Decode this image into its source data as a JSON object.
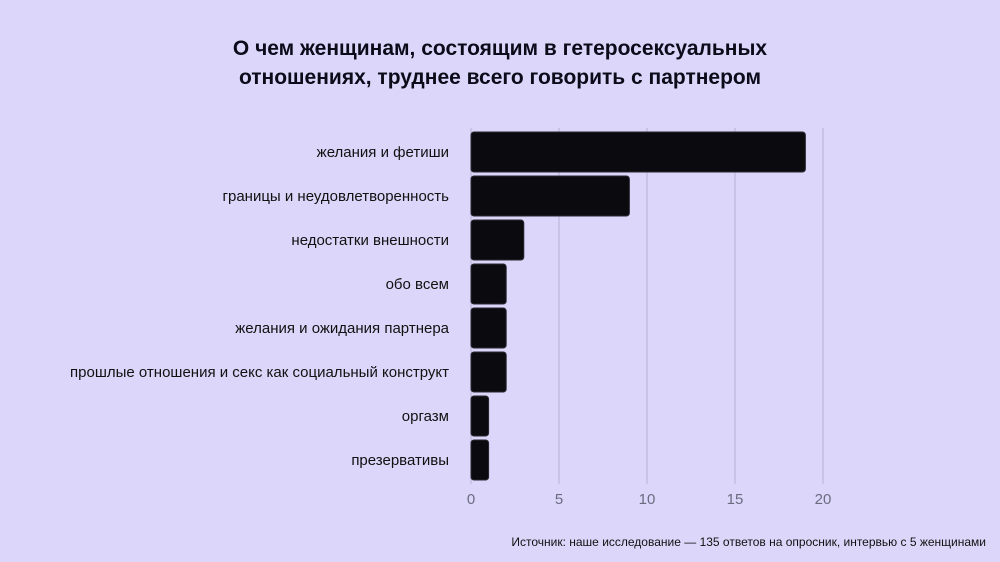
{
  "chart_data": {
    "type": "bar",
    "orientation": "horizontal",
    "title_lines": [
      "О чем женщинам, состоящим в гетеросексуальных",
      "отношениях, труднее всего говорить с партнером"
    ],
    "categories": [
      "желания и фетиши",
      "границы и неудовлетворенность",
      "недостатки внешности",
      "обо всем",
      "желания и ожидания партнера",
      "прошлые отношения и секс как социальный конструкт",
      "оргазм",
      "презервативы"
    ],
    "values": [
      19,
      9,
      3,
      2,
      2,
      2,
      1,
      1
    ],
    "xlim": [
      0,
      20
    ],
    "xticks": [
      "0",
      "5",
      "10",
      "15",
      "20"
    ],
    "xlabel": "",
    "ylabel": "",
    "grid": "vertical",
    "legend": "none",
    "colors": {
      "background": "#dcd7fa",
      "bar": "#0a0a0f",
      "bar_stroke": "#2a2a33",
      "grid": "#b4b0d6",
      "tick_text": "#6b6b80"
    }
  },
  "source_note": "Источник: наше исследование — 135 ответов на опросник, интервью с 5 женщинами"
}
